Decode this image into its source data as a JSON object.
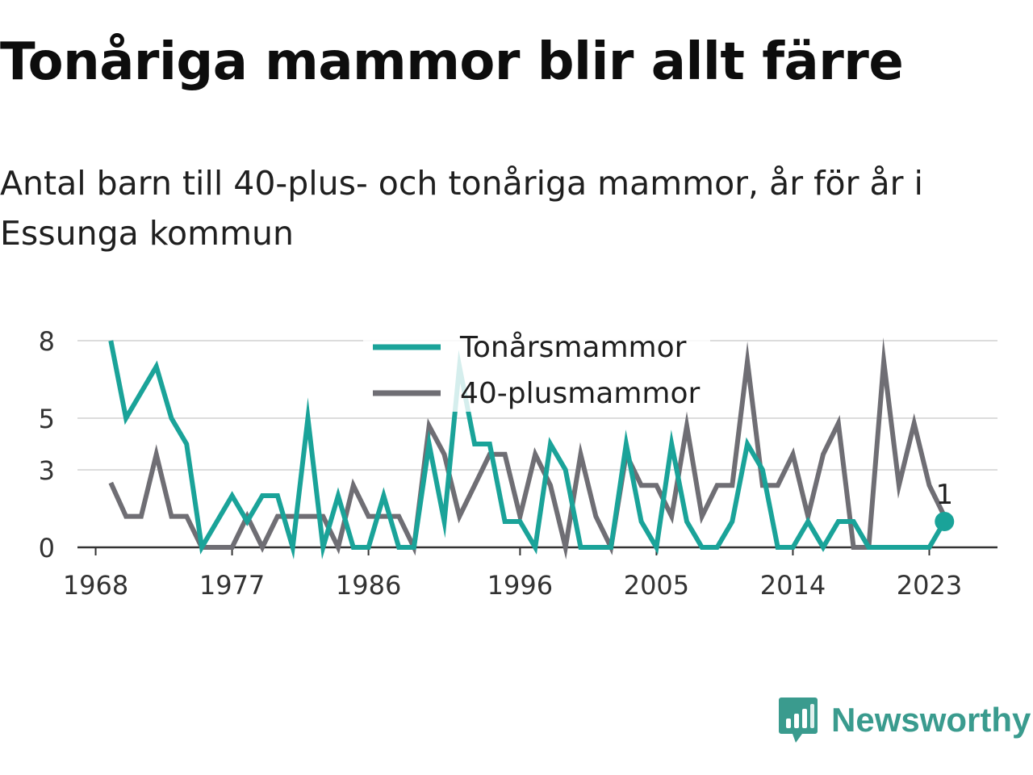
{
  "title": "Tonåriga mammor blir allt färre",
  "subtitle": "Antal barn till 40-plus- och tonåriga mammor, år för år i Essunga kommun",
  "brand": {
    "name": "Newsworthy",
    "color": "#3a9b8e",
    "icon": "newsworthy-logo-icon"
  },
  "chart_data": {
    "type": "line",
    "title": "Tonåriga mammor blir allt färre",
    "xlabel": "",
    "ylabel": "",
    "x": [
      1969,
      1970,
      1971,
      1972,
      1973,
      1974,
      1975,
      1976,
      1977,
      1978,
      1979,
      1980,
      1981,
      1982,
      1983,
      1984,
      1985,
      1986,
      1987,
      1988,
      1989,
      1990,
      1991,
      1992,
      1993,
      1994,
      1995,
      1996,
      1997,
      1998,
      1999,
      2000,
      2001,
      2002,
      2003,
      2004,
      2005,
      2006,
      2007,
      2008,
      2009,
      2010,
      2011,
      2012,
      2013,
      2014,
      2015,
      2016,
      2017,
      2018,
      2019,
      2020,
      2021,
      2022,
      2023,
      2024
    ],
    "x_ticks": [
      1968,
      1977,
      1986,
      1996,
      2005,
      2014,
      2023
    ],
    "y_ticks": [
      0,
      3,
      5,
      8
    ],
    "ylim": [
      0,
      9
    ],
    "grid": true,
    "legend_position": "top-center",
    "series": [
      {
        "name": "Tonårsmammor",
        "color": "#1aa399",
        "values": [
          8,
          5,
          6,
          7,
          5,
          4,
          0,
          1,
          2,
          1,
          2,
          2,
          0,
          5,
          0,
          2,
          0,
          0,
          2,
          0,
          0,
          4,
          1,
          7,
          4,
          4,
          1,
          1,
          0,
          4,
          3,
          0,
          0,
          0,
          4,
          1,
          0,
          4,
          1,
          0,
          0,
          1,
          4,
          3,
          0,
          0,
          1,
          0,
          1,
          1,
          0,
          0,
          0,
          0,
          0,
          1
        ]
      },
      {
        "name": "40-plusmammor",
        "color": "#6f6e74",
        "values": [
          2.5,
          1.2,
          1.2,
          3.6,
          1.2,
          1.2,
          0,
          0,
          0,
          1.2,
          0,
          1.2,
          1.2,
          1.2,
          1.2,
          0,
          2.4,
          1.2,
          1.2,
          1.2,
          0,
          4.7,
          3.6,
          1.2,
          2.4,
          3.6,
          3.6,
          1.2,
          3.6,
          2.4,
          0,
          3.6,
          1.2,
          0,
          3.6,
          2.4,
          2.4,
          1.2,
          4.7,
          1.2,
          2.4,
          2.4,
          7.2,
          2.4,
          2.4,
          3.6,
          1.2,
          3.6,
          4.8,
          0,
          0,
          7.2,
          2.4,
          4.8,
          2.4,
          1.2
        ]
      }
    ],
    "end_label": "1"
  }
}
